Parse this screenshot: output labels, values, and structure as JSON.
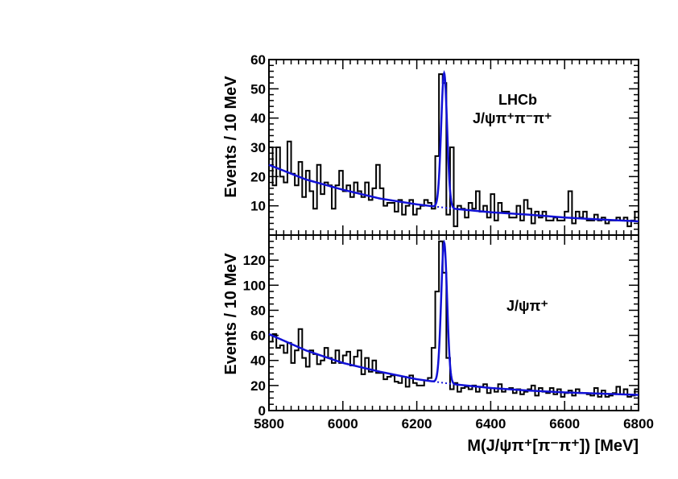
{
  "chart_data": [
    {
      "type": "histogram",
      "panel": "top",
      "ylabel": "Events / 10 MeV",
      "xlim": [
        5800,
        6800
      ],
      "ylim": [
        0,
        60
      ],
      "yticks": [
        10,
        20,
        30,
        40,
        50,
        60
      ],
      "annotations": [
        "LHCb",
        "J/ψπ⁺π⁻π⁺"
      ],
      "bin_width": 10,
      "x": [
        5805,
        5815,
        5825,
        5835,
        5845,
        5855,
        5865,
        5875,
        5885,
        5895,
        5905,
        5915,
        5925,
        5935,
        5945,
        5955,
        5965,
        5975,
        5985,
        5995,
        6005,
        6015,
        6025,
        6035,
        6045,
        6055,
        6065,
        6075,
        6085,
        6095,
        6105,
        6115,
        6125,
        6135,
        6145,
        6155,
        6165,
        6175,
        6185,
        6195,
        6205,
        6215,
        6225,
        6235,
        6245,
        6255,
        6265,
        6275,
        6285,
        6295,
        6305,
        6315,
        6325,
        6335,
        6345,
        6355,
        6365,
        6375,
        6385,
        6395,
        6405,
        6415,
        6425,
        6435,
        6445,
        6455,
        6465,
        6475,
        6485,
        6495,
        6505,
        6515,
        6525,
        6535,
        6545,
        6555,
        6565,
        6575,
        6585,
        6595,
        6605,
        6615,
        6625,
        6635,
        6645,
        6655,
        6665,
        6675,
        6685,
        6695,
        6705,
        6715,
        6725,
        6735,
        6745,
        6755,
        6765,
        6775,
        6785,
        6795
      ],
      "counts": [
        30,
        17,
        30,
        20,
        18,
        32,
        21,
        17,
        25,
        13,
        22,
        15,
        9,
        24,
        14,
        18,
        17,
        9,
        17,
        22,
        15,
        17,
        13,
        18,
        15,
        13,
        18,
        12,
        16,
        24,
        16,
        10,
        11,
        11,
        8,
        12,
        7,
        10,
        12,
        7,
        9,
        10,
        12,
        11,
        9,
        27,
        55,
        52,
        7,
        30,
        3,
        10,
        9,
        6,
        11,
        9,
        15,
        8,
        10,
        6,
        14,
        5,
        11,
        8,
        8,
        6,
        6,
        10,
        5,
        12,
        9,
        4,
        8,
        6,
        8,
        5,
        5,
        6,
        5,
        5,
        8,
        15,
        4,
        8,
        6,
        8,
        5,
        5,
        7,
        5,
        6,
        4,
        5,
        5,
        6,
        5,
        6,
        3,
        5,
        8
      ],
      "series": [
        {
          "name": "fit",
          "style": "solid",
          "color": "#1212d6"
        },
        {
          "name": "background",
          "style": "dotted",
          "color": "#1212d6"
        }
      ],
      "fit_model": {
        "signal_mean": 6274,
        "signal_sigma": 8,
        "background": [
          [
            5800,
            24
          ],
          [
            5900,
            19
          ],
          [
            6000,
            15.5
          ],
          [
            6100,
            12.5
          ],
          [
            6200,
            10.5
          ],
          [
            6300,
            9
          ],
          [
            6400,
            7.8
          ],
          [
            6500,
            7
          ],
          [
            6600,
            6
          ],
          [
            6700,
            5.3
          ],
          [
            6800,
            4.7
          ]
        ],
        "peak_height": 46
      }
    },
    {
      "type": "histogram",
      "panel": "bottom",
      "ylabel": "Events / 10 MeV",
      "xlabel": "M(J/ψπ⁺[π⁻π⁺]) [MeV]",
      "xlim": [
        5800,
        6800
      ],
      "ylim": [
        0,
        140
      ],
      "xticks": [
        5800,
        6000,
        6200,
        6400,
        6600,
        6800
      ],
      "yticks": [
        0,
        20,
        40,
        60,
        80,
        100,
        120
      ],
      "annotations": [
        "J/ψπ⁺"
      ],
      "bin_width": 10,
      "x": [
        5805,
        5815,
        5825,
        5835,
        5845,
        5855,
        5865,
        5875,
        5885,
        5895,
        5905,
        5915,
        5925,
        5935,
        5945,
        5955,
        5965,
        5975,
        5985,
        5995,
        6005,
        6015,
        6025,
        6035,
        6045,
        6055,
        6065,
        6075,
        6085,
        6095,
        6105,
        6115,
        6125,
        6135,
        6145,
        6155,
        6165,
        6175,
        6185,
        6195,
        6205,
        6215,
        6225,
        6235,
        6245,
        6255,
        6265,
        6275,
        6285,
        6295,
        6305,
        6315,
        6325,
        6335,
        6345,
        6355,
        6365,
        6375,
        6385,
        6395,
        6405,
        6415,
        6425,
        6435,
        6445,
        6455,
        6465,
        6475,
        6485,
        6495,
        6505,
        6515,
        6525,
        6535,
        6545,
        6555,
        6565,
        6575,
        6585,
        6595,
        6605,
        6615,
        6625,
        6635,
        6645,
        6655,
        6665,
        6675,
        6685,
        6695,
        6705,
        6715,
        6725,
        6735,
        6745,
        6755,
        6765,
        6775,
        6785,
        6795
      ],
      "counts": [
        55,
        61,
        50,
        52,
        46,
        54,
        38,
        48,
        65,
        42,
        35,
        48,
        45,
        37,
        40,
        50,
        42,
        38,
        48,
        38,
        44,
        47,
        36,
        43,
        48,
        29,
        42,
        31,
        40,
        30,
        30,
        25,
        27,
        28,
        23,
        22,
        27,
        19,
        28,
        22,
        20,
        20,
        24,
        26,
        50,
        95,
        135,
        110,
        42,
        17,
        22,
        15,
        18,
        19,
        17,
        20,
        15,
        19,
        21,
        14,
        18,
        15,
        21,
        15,
        17,
        18,
        14,
        17,
        13,
        15,
        17,
        20,
        12,
        18,
        15,
        14,
        18,
        13,
        17,
        11,
        14,
        16,
        12,
        17,
        14,
        14,
        13,
        12,
        18,
        11,
        16,
        11,
        12,
        14,
        19,
        13,
        17,
        11,
        12,
        17
      ],
      "series": [
        {
          "name": "fit",
          "style": "solid",
          "color": "#1212d6"
        },
        {
          "name": "background",
          "style": "dotted",
          "color": "#1212d6"
        }
      ],
      "fit_model": {
        "signal_mean": 6274,
        "signal_sigma": 8,
        "background": [
          [
            5800,
            61
          ],
          [
            5900,
            48
          ],
          [
            6000,
            38
          ],
          [
            6100,
            31
          ],
          [
            6200,
            25
          ],
          [
            6300,
            21
          ],
          [
            6400,
            18
          ],
          [
            6500,
            16
          ],
          [
            6600,
            14.5
          ],
          [
            6700,
            13.5
          ],
          [
            6800,
            12.5
          ]
        ],
        "peak_height": 112
      }
    }
  ]
}
